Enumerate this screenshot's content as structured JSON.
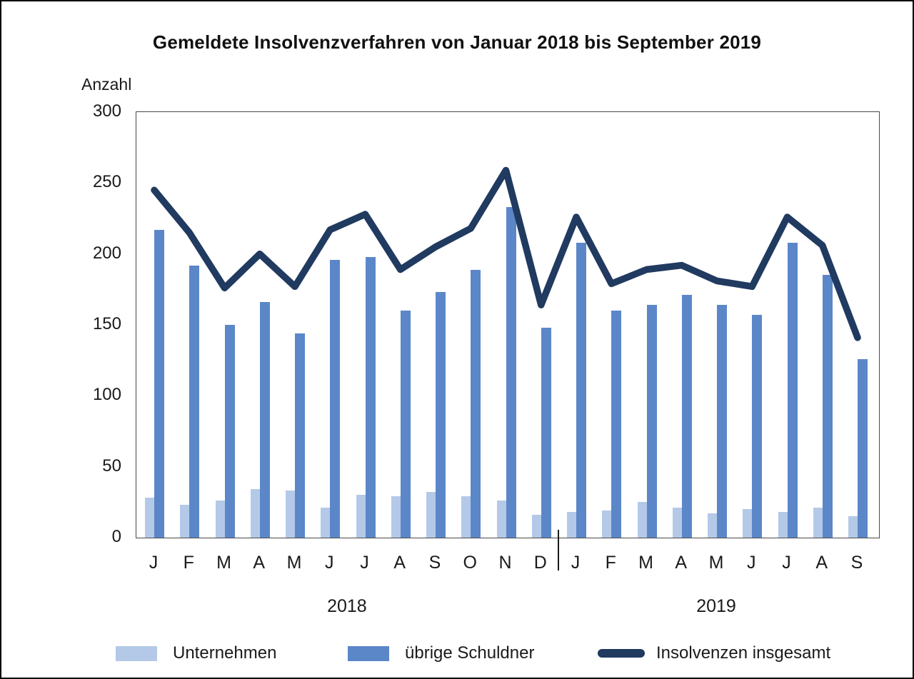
{
  "title": "Gemeldete Insolvenzverfahren von Januar 2018 bis September 2019",
  "y_axis": {
    "label": "Anzahl",
    "ticks": [
      300,
      250,
      200,
      150,
      100,
      50,
      0
    ]
  },
  "x_axis": {
    "groups": [
      {
        "year": "2018",
        "month_count": 12
      },
      {
        "year": "2019",
        "month_count": 9
      }
    ]
  },
  "legend": {
    "items": [
      {
        "label": "Unternehmen",
        "color": "#b4c9e8",
        "type": "bar"
      },
      {
        "label": "übrige Schuldner",
        "color": "#5b87c9",
        "type": "bar"
      },
      {
        "label": "Insolvenzen insgesamt",
        "color": "#203a60",
        "type": "line"
      }
    ]
  },
  "colors": {
    "bar_light": "#b4c9e8",
    "bar_medium": "#5b87c9",
    "line_dark": "#203a60",
    "plot_border": "#4a4a4a",
    "text": "#1a1a1a"
  },
  "chart_data": {
    "type": "bar",
    "categories": [
      "J",
      "F",
      "M",
      "A",
      "M",
      "J",
      "J",
      "A",
      "S",
      "O",
      "N",
      "D",
      "J",
      "F",
      "M",
      "A",
      "M",
      "J",
      "J",
      "A",
      "S"
    ],
    "series": [
      {
        "name": "Unternehmen",
        "type": "bar",
        "color": "#b4c9e8",
        "values": [
          28,
          23,
          26,
          34,
          33,
          21,
          30,
          29,
          32,
          29,
          26,
          16,
          18,
          19,
          25,
          21,
          17,
          20,
          18,
          21,
          15
        ]
      },
      {
        "name": "übrige Schuldner",
        "type": "bar",
        "color": "#5b87c9",
        "values": [
          217,
          192,
          150,
          166,
          144,
          196,
          198,
          160,
          173,
          189,
          233,
          148,
          208,
          160,
          164,
          171,
          164,
          157,
          208,
          185,
          126
        ]
      },
      {
        "name": "Insolvenzen insgesamt",
        "type": "line",
        "color": "#203a60",
        "values": [
          245,
          215,
          176,
          200,
          177,
          217,
          228,
          189,
          205,
          218,
          259,
          164,
          226,
          179,
          189,
          192,
          181,
          177,
          226,
          206,
          141
        ]
      }
    ],
    "title": "Gemeldete Insolvenzverfahren von Januar 2018 bis September 2019",
    "xlabel": "",
    "ylabel": "Anzahl",
    "ylim": [
      0,
      300
    ],
    "grid": false,
    "legend_position": "bottom"
  }
}
